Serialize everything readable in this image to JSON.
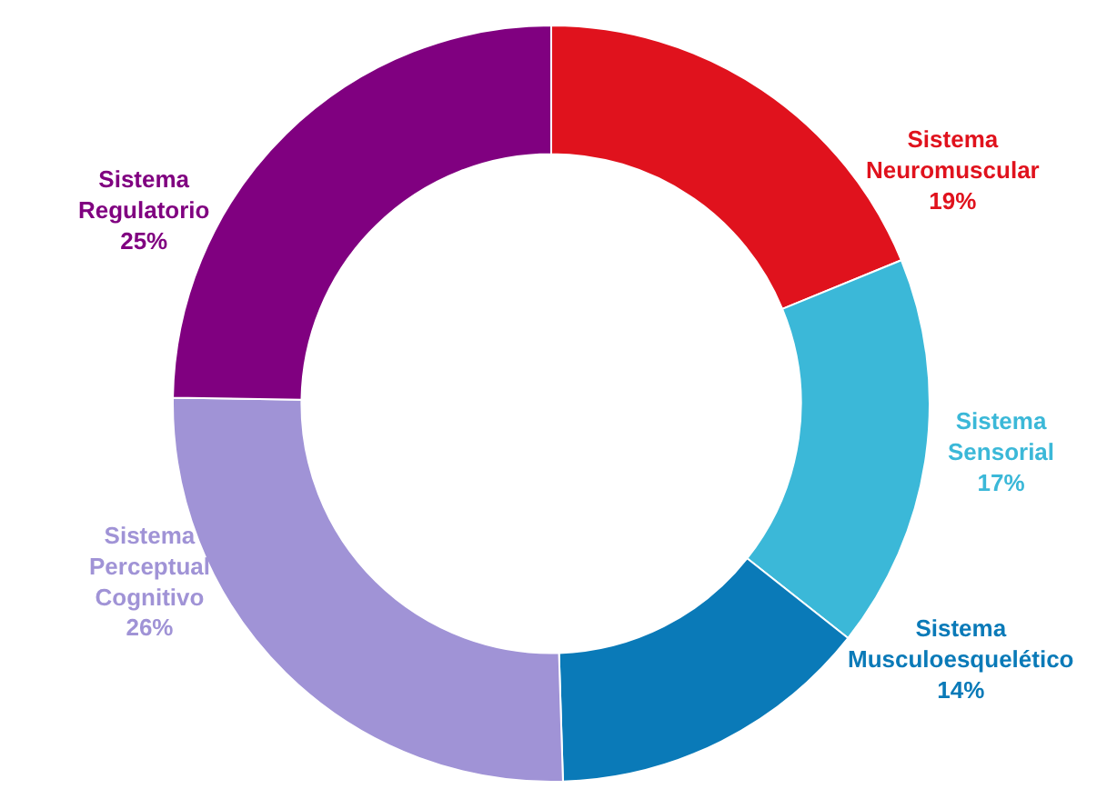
{
  "chart_data": {
    "type": "donut",
    "categories": [
      "Sistema Neuromuscular",
      "Sistema Sensorial",
      "Sistema Musculoesquelético",
      "Sistema Perceptual Cognitivo",
      "Sistema Regulatorio"
    ],
    "values": [
      19,
      17,
      14,
      26,
      25
    ],
    "value_labels": [
      "19%",
      "17%",
      "14%",
      "26%",
      "25%"
    ],
    "colors": [
      "#e0121d",
      "#3bb8d8",
      "#0a7ab8",
      "#a093d6",
      "#800080"
    ],
    "legend": false
  }
}
